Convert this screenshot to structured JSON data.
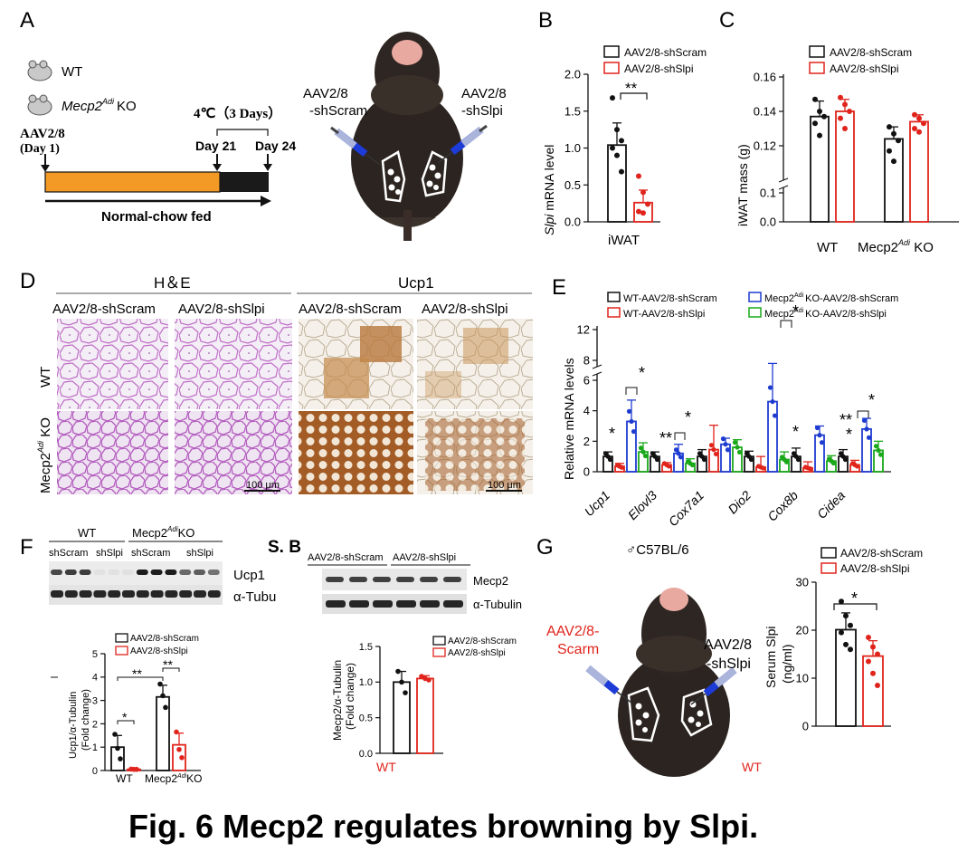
{
  "colors": {
    "scram": "#111111",
    "slpi": "#e0241c",
    "ko_scram": "#1f3cd1",
    "ko_slpi": "#1aa81a",
    "orange": "#f39a26",
    "dark": "#1a1a1a"
  },
  "caption": "Fig. 6 Mecp2 regulates browning by Slpi.",
  "panelA": {
    "label": "A",
    "legend_wt": "WT",
    "legend_ko_prefix": "Mecp2",
    "legend_ko_sup": "Adi",
    "legend_ko_suffix": "KO",
    "aav_title": "AAV2/8",
    "aav_day": "(Day 1)",
    "cold": "4℃（3 Days）",
    "day21": "Day 21",
    "day24": "Day 24",
    "timeline_label": "Normal-chow fed",
    "photo_left_1": "AAV2/8",
    "photo_left_2": "-shScram",
    "photo_right_1": "AAV2/8",
    "photo_right_2": "-shSlpi"
  },
  "panelB": {
    "label": "B",
    "legend": [
      "AAV2/8-shScram",
      "AAV2/8-shSlpi"
    ],
    "ylabel_italic": "Slpi",
    "ylabel_rest": " mRNA level",
    "yticks": [
      "0.0",
      "0.5",
      "1.0",
      "1.5",
      "2.0"
    ],
    "xlabel": "iWAT",
    "sig": "**"
  },
  "panelC": {
    "label": "C",
    "legend": [
      "AAV2/8-shScram",
      "AAV2/8-shSlpi"
    ],
    "ylabel": "iWAT mass (g)",
    "yticks_upper": [
      "0.12",
      "0.14",
      "0.16"
    ],
    "yticks_lower": [
      "0.0",
      "0.1"
    ],
    "x_wt": "WT",
    "x_ko_prefix": "Mecp2",
    "x_ko_sup": "Adi",
    "x_ko_suffix": " KO"
  },
  "panelD": {
    "label": "D",
    "he_title": "H＆E",
    "ucp1_title": "Ucp1",
    "cols": [
      "AAV2/8-shScram",
      "AAV2/8-shSlpi",
      "AAV2/8-shScram",
      "AAV2/8-shSlpi"
    ],
    "row_wt": "WT",
    "row_ko_prefix": "Mecp2",
    "row_ko_sup": "Adi",
    "row_ko_suffix": " KO",
    "scale_left": "100 μm",
    "scale_right": "100 μm"
  },
  "panelE": {
    "label": "E",
    "legend": [
      "WT-AAV2/8-shScram",
      "WT-AAV2/8-shSlpi",
      "Mecp2",
      "Mecp2"
    ],
    "legend_ko_sup": "Adi",
    "legend_ko_suffix": [
      "KO-AAV2/8-shScram",
      "KO-AAV2/8-shSlpi"
    ],
    "ylabel": "Relative mRNA  levels",
    "yticks_low": [
      "0",
      "2",
      "4",
      "6"
    ],
    "yticks_high": [
      "8",
      "12"
    ],
    "genes": [
      "Ucp1",
      "Elovl3",
      "Cox7a1",
      "Dio2",
      "Cox8b",
      "Cidea"
    ],
    "sigs": [
      "*",
      "*",
      "**",
      "*",
      "*",
      "*",
      "**",
      "*",
      "*"
    ]
  },
  "panelF": {
    "label": "F",
    "wt": "WT",
    "ko_prefix": "Mecp2",
    "ko_sup": "Adi",
    "ko_suffix": "KO",
    "lanes": [
      "shScram",
      "shSlpi",
      "shScram",
      "shSlpi"
    ],
    "band1": "Ucp1",
    "band2": "α-Tubu",
    "legend": [
      "AAV2/8-shScram",
      "AAV2/8-shSlpi"
    ],
    "ylabel1": "Ucp1/α-Tubulin",
    "ylabel2": "(Fold change)",
    "yticks": [
      "0",
      "1",
      "2",
      "3",
      "4",
      "5"
    ],
    "x_wt": "WT",
    "x_ko_prefix": "Mecp2",
    "x_ko_sup": "Adi",
    "x_ko_suffix": "KO",
    "sigs": [
      "*",
      "**",
      "**"
    ]
  },
  "panelSB": {
    "label": "S. B",
    "lanes": [
      "AAV2/8-shScram",
      "AAV2/8-shSlpi"
    ],
    "band1": "Mecp2",
    "band2": "α-Tubulin",
    "legend": [
      "AAV2/8-shScram",
      "AAV2/8-shSlpi"
    ],
    "ylabel1": "Mecp2/α-Tubulin",
    "ylabel2": "(Fold change)",
    "yticks": [
      "0.0",
      "0.5",
      "1.0",
      "1.5"
    ],
    "wt": "WT"
  },
  "panelG": {
    "label": "G",
    "strain": "♂C57BL/6",
    "left_1": "AAV2/8-",
    "left_2": "Scarm",
    "right_1": "AAV2/8",
    "right_2": "-shSlpi",
    "wt": "WT",
    "legend": [
      "AAV2/8-shScram",
      "AAV2/8-shSlpi"
    ],
    "ylabel1": "Serum Slpi",
    "ylabel2": "(ng/ml)",
    "yticks": [
      "0",
      "10",
      "20",
      "30"
    ],
    "sig": "*"
  },
  "chart_data": [
    {
      "id": "B",
      "type": "bar",
      "title": "",
      "xlabel": "iWAT",
      "ylabel": "Slpi mRNA level",
      "ylim": [
        0,
        2.0
      ],
      "categories": [
        "iWAT"
      ],
      "series": [
        {
          "name": "AAV2/8-shScram",
          "values": [
            1.04
          ],
          "err": [
            0.3
          ],
          "points": [
            1.68,
            1.25,
            1.1,
            1.0,
            0.9,
            0.68
          ]
        },
        {
          "name": "AAV2/8-shSlpi",
          "values": [
            0.26
          ],
          "err": [
            0.17
          ],
          "points": [
            0.62,
            0.4,
            0.24,
            0.14,
            0.12
          ]
        }
      ]
    },
    {
      "id": "C",
      "type": "bar",
      "title": "",
      "xlabel": "",
      "ylabel": "iWAT mass (g)",
      "ylim": [
        0,
        0.16
      ],
      "categories": [
        "WT",
        "Mecp2Adi KO"
      ],
      "series": [
        {
          "name": "AAV2/8-shScram",
          "values": [
            0.137,
            0.124
          ],
          "err": [
            0.009,
            0.007
          ],
          "points": [
            [
              0.147,
              0.14,
              0.137,
              0.133,
              0.126
            ],
            [
              0.131,
              0.127,
              0.123,
              0.117,
              0.111
            ]
          ]
        },
        {
          "name": "AAV2/8-shSlpi",
          "values": [
            0.14,
            0.134
          ],
          "err": [
            0.007,
            0.004
          ],
          "points": [
            [
              0.148,
              0.144,
              0.14,
              0.136,
              0.13
            ],
            [
              0.138,
              0.136,
              0.133,
              0.13,
              0.128
            ]
          ]
        }
      ]
    },
    {
      "id": "E",
      "type": "bar",
      "title": "",
      "xlabel": "",
      "ylabel": "Relative mRNA levels",
      "ylim": [
        0,
        12
      ],
      "categories": [
        "Ucp1",
        "Elovl3",
        "Cox7a1",
        "Dio2",
        "Cox8b",
        "Cidea"
      ],
      "series": [
        {
          "name": "WT-AAV2/8-shScram",
          "values": [
            1.0,
            1.0,
            1.0,
            1.0,
            1.0,
            1.0
          ],
          "err": [
            0.3,
            0.3,
            0.45,
            0.35,
            0.55,
            0.45
          ]
        },
        {
          "name": "WT-AAV2/8-shSlpi",
          "values": [
            0.35,
            0.45,
            1.45,
            0.3,
            0.25,
            0.45
          ],
          "err": [
            0.2,
            0.15,
            1.6,
            0.7,
            0.4,
            0.3
          ]
        },
        {
          "name": "Mecp2Adi KO-AAV2/8-shScram",
          "values": [
            3.3,
            1.2,
            1.8,
            4.6,
            2.4,
            2.8
          ],
          "err": [
            1.4,
            0.6,
            0.4,
            3.0,
            0.6,
            0.7
          ]
        },
        {
          "name": "Mecp2Adi KO-AAV2/8-shSlpi",
          "values": [
            1.3,
            0.55,
            1.6,
            0.8,
            0.7,
            1.4
          ],
          "err": [
            0.6,
            0.3,
            0.5,
            0.5,
            0.35,
            0.6
          ]
        }
      ]
    },
    {
      "id": "F",
      "type": "bar",
      "title": "",
      "xlabel": "",
      "ylabel": "Ucp1/α-Tubulin (Fold change)",
      "ylim": [
        0,
        5
      ],
      "categories": [
        "WT",
        "Mecp2Adi KO"
      ],
      "series": [
        {
          "name": "AAV2/8-shScram",
          "values": [
            1.0,
            3.15
          ],
          "err": [
            0.5,
            0.5
          ],
          "points": [
            [
              1.55,
              0.95,
              0.5
            ],
            [
              3.7,
              3.2,
              2.7
            ]
          ]
        },
        {
          "name": "AAV2/8-shSlpi",
          "values": [
            0.05,
            1.1
          ],
          "err": [
            0.02,
            0.5
          ],
          "points": [
            [
              0.06,
              0.05,
              0.05
            ],
            [
              1.65,
              0.9,
              0.55
            ]
          ]
        }
      ]
    },
    {
      "id": "S.B",
      "type": "bar",
      "title": "",
      "xlabel": "WT",
      "ylabel": "Mecp2/α-Tubulin (Fold change)",
      "ylim": [
        0,
        1.5
      ],
      "categories": [
        "WT"
      ],
      "series": [
        {
          "name": "AAV2/8-shScram",
          "values": [
            1.0
          ],
          "err": [
            0.15
          ],
          "points": [
            1.15,
            1.0,
            0.85
          ]
        },
        {
          "name": "AAV2/8-shSlpi",
          "values": [
            1.05
          ],
          "err": [
            0.04
          ],
          "points": [
            1.08,
            1.05,
            1.03
          ]
        }
      ]
    },
    {
      "id": "G",
      "type": "bar",
      "title": "",
      "xlabel": "",
      "ylabel": "Serum Slpi (ng/ml)",
      "ylim": [
        0,
        30
      ],
      "categories": [
        "Serum"
      ],
      "series": [
        {
          "name": "AAV2/8-shScram",
          "values": [
            20.1
          ],
          "err": [
            3.5
          ],
          "points": [
            26,
            23,
            21,
            19.5,
            17,
            16
          ]
        },
        {
          "name": "AAV2/8-shSlpi",
          "values": [
            14.6
          ],
          "err": [
            3.2
          ],
          "points": [
            18.5,
            16.5,
            15,
            13.5,
            11,
            8.5
          ]
        }
      ]
    }
  ]
}
